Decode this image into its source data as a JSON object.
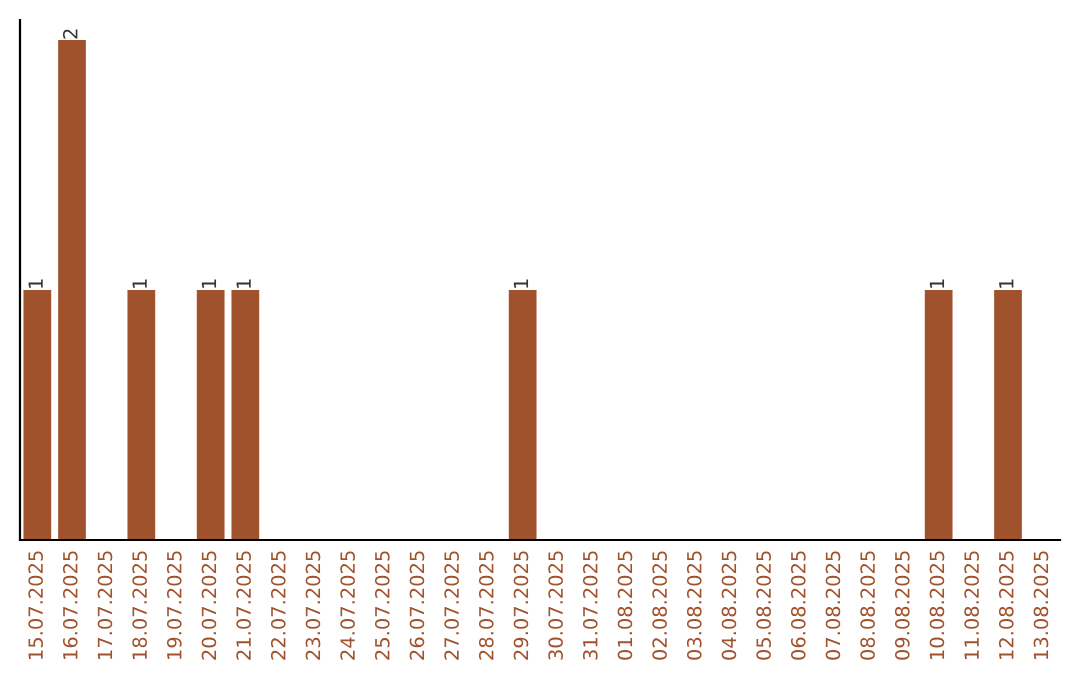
{
  "chart_data": {
    "type": "bar",
    "categories": [
      "15.07.2025",
      "16.07.2025",
      "17.07.2025",
      "18.07.2025",
      "19.07.2025",
      "20.07.2025",
      "21.07.2025",
      "22.07.2025",
      "23.07.2025",
      "24.07.2025",
      "25.07.2025",
      "26.07.2025",
      "27.07.2025",
      "28.07.2025",
      "29.07.2025",
      "30.07.2025",
      "31.07.2025",
      "01.08.2025",
      "02.08.2025",
      "03.08.2025",
      "04.08.2025",
      "05.08.2025",
      "06.08.2025",
      "07.08.2025",
      "08.08.2025",
      "09.08.2025",
      "10.08.2025",
      "11.08.2025",
      "12.08.2025",
      "13.08.2025"
    ],
    "values": [
      1,
      2,
      0,
      1,
      0,
      1,
      1,
      0,
      0,
      0,
      0,
      0,
      0,
      0,
      1,
      0,
      0,
      0,
      0,
      0,
      0,
      0,
      0,
      0,
      0,
      0,
      1,
      0,
      1,
      0
    ],
    "color": "#a0522d",
    "value_labels": [
      "1",
      "2",
      null,
      "1",
      null,
      "1",
      "1",
      null,
      null,
      null,
      null,
      null,
      null,
      null,
      "1",
      null,
      null,
      null,
      null,
      null,
      null,
      null,
      null,
      null,
      null,
      null,
      "1",
      null,
      "1",
      null
    ],
    "grid": false,
    "legend": false
  }
}
